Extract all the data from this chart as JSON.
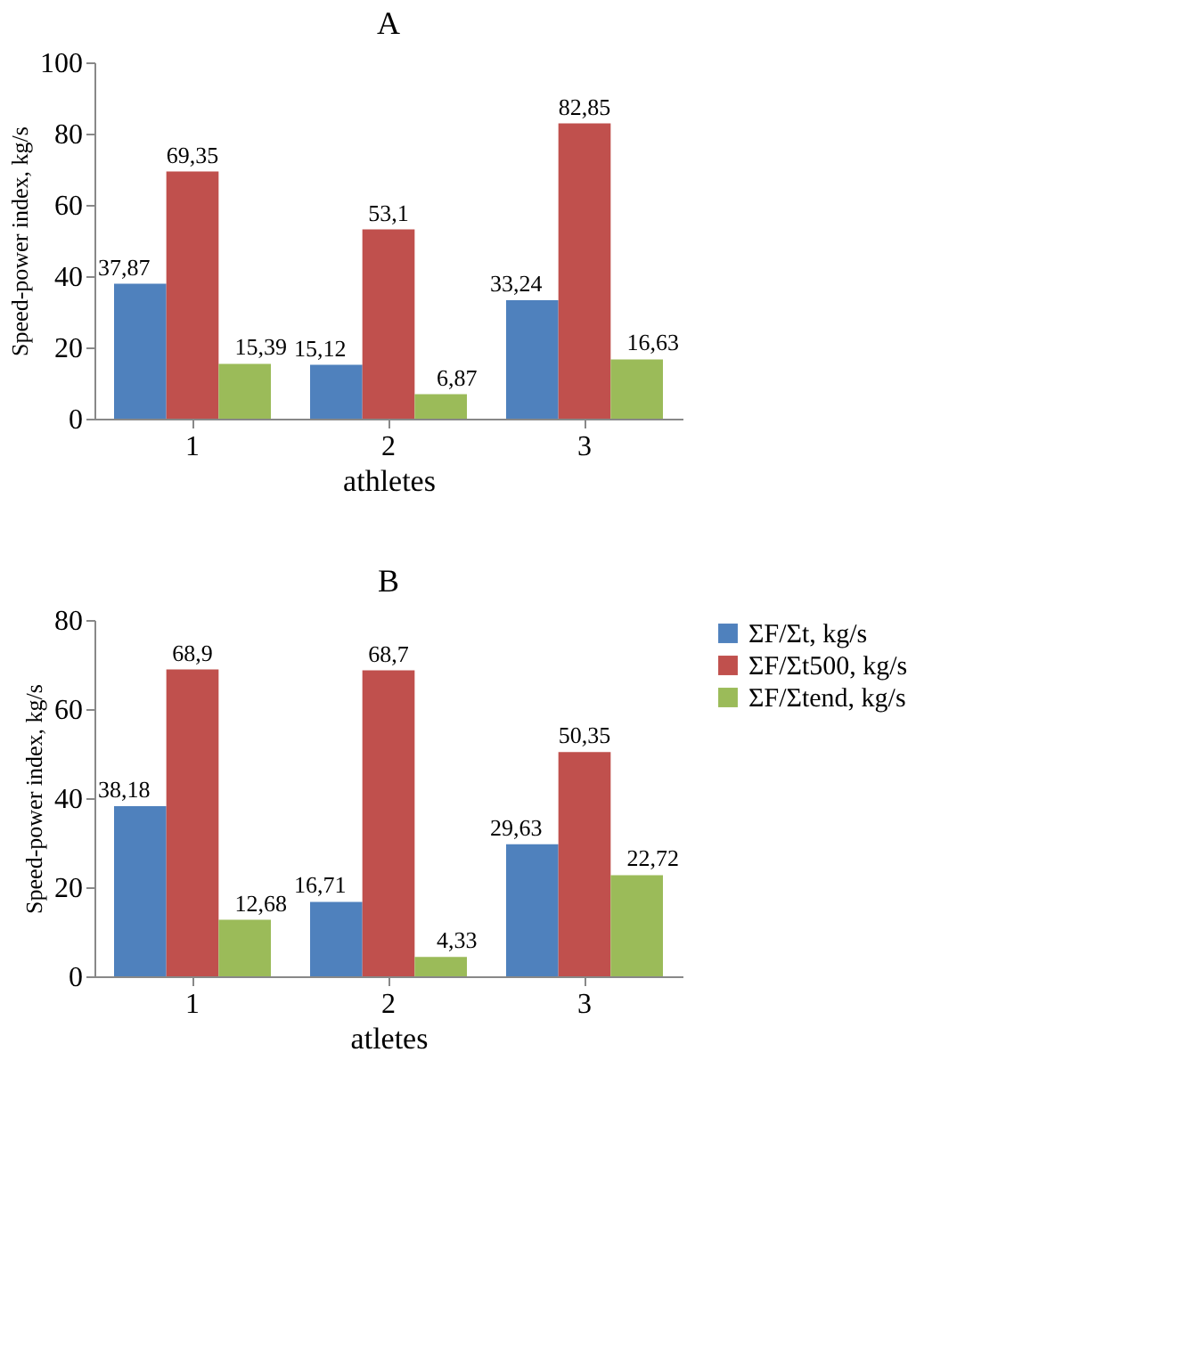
{
  "chart_data": [
    {
      "type": "bar",
      "title": "A",
      "xlabel": "athletes",
      "ylabel": "Speed-power index, kg/s",
      "categories": [
        "1",
        "2",
        "3"
      ],
      "ylim": [
        0,
        100
      ],
      "yticks": [
        0,
        20,
        40,
        60,
        80,
        100
      ],
      "grid": false,
      "legend": false,
      "series": [
        {
          "color": "#4f81bd",
          "values": [
            37.87,
            15.12,
            33.24
          ],
          "value_labels": [
            "37,87",
            "15,12",
            "33,24"
          ]
        },
        {
          "color": "#c0504d",
          "values": [
            69.35,
            53.1,
            82.85
          ],
          "value_labels": [
            "69,35",
            "53,1",
            "82,85"
          ]
        },
        {
          "color": "#9bbb59",
          "values": [
            15.39,
            6.87,
            16.63
          ],
          "value_labels": [
            "15,39",
            "6,87",
            "16,63"
          ]
        }
      ]
    },
    {
      "type": "bar",
      "title": "B",
      "xlabel": "atletes",
      "ylabel": "Speed-power index, kg/s",
      "categories": [
        "1",
        "2",
        "3"
      ],
      "ylim": [
        0,
        80
      ],
      "yticks": [
        0,
        20,
        40,
        60,
        80
      ],
      "grid": false,
      "legend": "right",
      "series": [
        {
          "name": "ΣF/Σt, kg/s",
          "color": "#4f81bd",
          "values": [
            38.18,
            16.71,
            29.63
          ],
          "value_labels": [
            "38,18",
            "16,71",
            "29,63"
          ]
        },
        {
          "name": "ΣF/Σt500, kg/s",
          "color": "#c0504d",
          "values": [
            68.9,
            68.7,
            50.35
          ],
          "value_labels": [
            "68,9",
            "68,7",
            "50,35"
          ]
        },
        {
          "name": "ΣF/Σtend, kg/s",
          "color": "#9bbb59",
          "values": [
            12.68,
            4.33,
            22.72
          ],
          "value_labels": [
            "12,68",
            "4,33",
            "22,72"
          ]
        }
      ]
    }
  ]
}
